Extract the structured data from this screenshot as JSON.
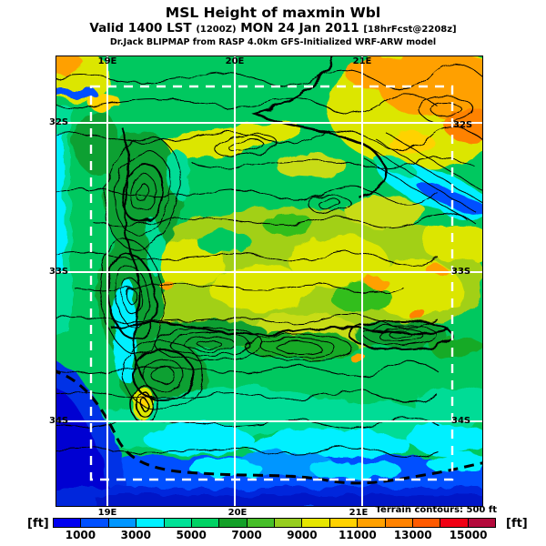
{
  "title": {
    "line1": "MSL Height of maxmin Wbl",
    "line2": {
      "valid": "Valid 1400 LST",
      "zulu": "(1200Z)",
      "date": "MON 24 Jan 2011",
      "fcst": "[18hrFcst@2208z]"
    },
    "line3": "Dr.Jack BLIPMAP from RASP 4.0km GFS-Initialized WRF-ARW model"
  },
  "map": {
    "x_labels": [
      "19E",
      "20E",
      "21E"
    ],
    "y_labels": [
      "32S",
      "33S",
      "34S"
    ]
  },
  "legend": {
    "unit_left": "[ft]",
    "unit_right": "[ft]",
    "contour_note": "Terrain contours: 500 ft",
    "ticks": [
      "1000",
      "3000",
      "5000",
      "7000",
      "9000",
      "11000",
      "13000",
      "15000"
    ],
    "palette": [
      "#0000f0",
      "#0050ff",
      "#0096ff",
      "#00f0ff",
      "#00e196",
      "#00d264",
      "#14a028",
      "#46be28",
      "#96cd1e",
      "#e6e600",
      "#ffd200",
      "#ffa000",
      "#ff8200",
      "#ff5a00",
      "#f00014",
      "#b40a3c"
    ],
    "grid_color": "#ffffff",
    "contour_color": "#000000"
  }
}
